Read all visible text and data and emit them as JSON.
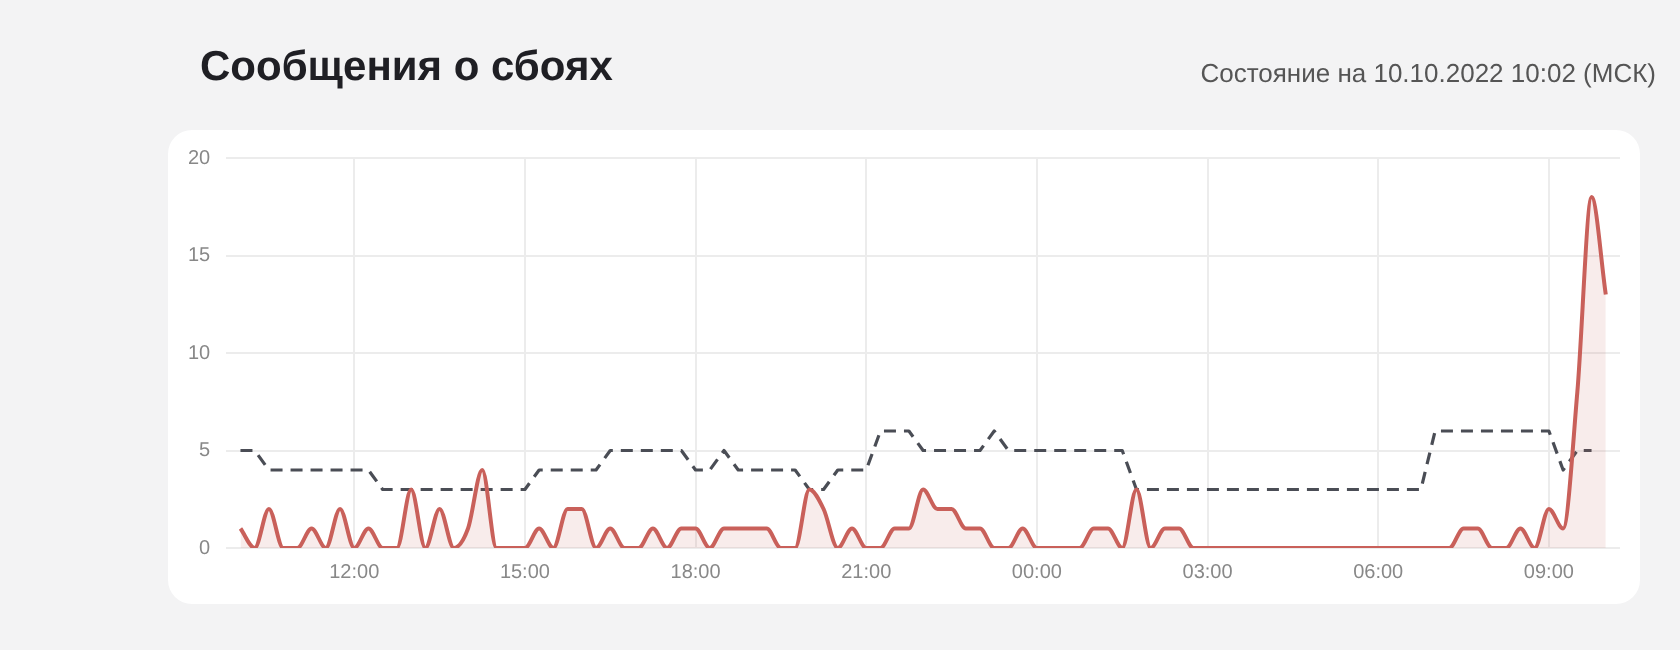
{
  "chart_data": {
    "type": "area",
    "title": "Сообщения о сбоях",
    "subtitle": "Состояние на 10.10.2022 10:02 (МСК)",
    "x": [
      "2022-10-09T10:00",
      "2022-10-09T10:15",
      "2022-10-09T10:30",
      "2022-10-09T10:45",
      "2022-10-09T11:00",
      "2022-10-09T11:15",
      "2022-10-09T11:30",
      "2022-10-09T11:45",
      "2022-10-09T12:00",
      "2022-10-09T12:15",
      "2022-10-09T12:30",
      "2022-10-09T12:45",
      "2022-10-09T13:00",
      "2022-10-09T13:15",
      "2022-10-09T13:30",
      "2022-10-09T13:45",
      "2022-10-09T14:00",
      "2022-10-09T14:15",
      "2022-10-09T14:30",
      "2022-10-09T14:45",
      "2022-10-09T15:00",
      "2022-10-09T15:15",
      "2022-10-09T15:30",
      "2022-10-09T15:45",
      "2022-10-09T16:00",
      "2022-10-09T16:15",
      "2022-10-09T16:30",
      "2022-10-09T16:45",
      "2022-10-09T17:00",
      "2022-10-09T17:15",
      "2022-10-09T17:30",
      "2022-10-09T17:45",
      "2022-10-09T18:00",
      "2022-10-09T18:15",
      "2022-10-09T18:30",
      "2022-10-09T18:45",
      "2022-10-09T19:00",
      "2022-10-09T19:15",
      "2022-10-09T19:30",
      "2022-10-09T19:45",
      "2022-10-09T20:00",
      "2022-10-09T20:15",
      "2022-10-09T20:30",
      "2022-10-09T20:45",
      "2022-10-09T21:00",
      "2022-10-09T21:15",
      "2022-10-09T21:30",
      "2022-10-09T21:45",
      "2022-10-09T22:00",
      "2022-10-09T22:15",
      "2022-10-09T22:30",
      "2022-10-09T22:45",
      "2022-10-09T23:00",
      "2022-10-09T23:15",
      "2022-10-09T23:30",
      "2022-10-09T23:45",
      "2022-10-10T00:00",
      "2022-10-10T00:15",
      "2022-10-10T00:30",
      "2022-10-10T00:45",
      "2022-10-10T01:00",
      "2022-10-10T01:15",
      "2022-10-10T01:30",
      "2022-10-10T01:45",
      "2022-10-10T02:00",
      "2022-10-10T02:15",
      "2022-10-10T02:30",
      "2022-10-10T02:45",
      "2022-10-10T03:00",
      "2022-10-10T03:15",
      "2022-10-10T03:30",
      "2022-10-10T03:45",
      "2022-10-10T04:00",
      "2022-10-10T04:15",
      "2022-10-10T04:30",
      "2022-10-10T04:45",
      "2022-10-10T05:00",
      "2022-10-10T05:15",
      "2022-10-10T05:30",
      "2022-10-10T05:45",
      "2022-10-10T06:00",
      "2022-10-10T06:15",
      "2022-10-10T06:30",
      "2022-10-10T06:45",
      "2022-10-10T07:00",
      "2022-10-10T07:15",
      "2022-10-10T07:30",
      "2022-10-10T07:45",
      "2022-10-10T08:00",
      "2022-10-10T08:15",
      "2022-10-10T08:30",
      "2022-10-10T08:45",
      "2022-10-10T09:00",
      "2022-10-10T09:15",
      "2022-10-10T09:30",
      "2022-10-10T09:45",
      "2022-10-10T10:00"
    ],
    "series": [
      {
        "type": "area",
        "color": "#c9605a",
        "values": [
          1,
          0,
          2,
          0,
          0,
          1,
          0,
          2,
          0,
          1,
          0,
          0,
          3,
          0,
          2,
          0,
          1,
          4,
          0,
          0,
          0,
          1,
          0,
          2,
          2,
          0,
          1,
          0,
          0,
          1,
          0,
          1,
          1,
          0,
          1,
          1,
          1,
          1,
          0,
          0,
          3,
          2,
          0,
          1,
          0,
          0,
          1,
          1,
          3,
          2,
          2,
          1,
          1,
          0,
          0,
          1,
          0,
          0,
          0,
          0,
          1,
          1,
          0,
          3,
          0,
          1,
          1,
          0,
          0,
          0,
          0,
          0,
          0,
          0,
          0,
          0,
          0,
          0,
          0,
          0,
          0,
          0,
          0,
          0,
          0,
          0,
          1,
          1,
          0,
          0,
          1,
          0,
          2,
          1,
          8,
          18,
          13
        ]
      },
      {
        "type": "line",
        "color": "#4a4d55",
        "line_style": "dashed",
        "x": [
          "2022-10-09T10:00",
          "2022-10-09T10:15",
          "2022-10-09T10:30",
          "2022-10-09T12:15",
          "2022-10-09T12:30",
          "2022-10-09T15:00",
          "2022-10-09T15:15",
          "2022-10-09T16:15",
          "2022-10-09T16:30",
          "2022-10-09T17:45",
          "2022-10-09T18:00",
          "2022-10-09T18:15",
          "2022-10-09T18:30",
          "2022-10-09T18:45",
          "2022-10-09T19:45",
          "2022-10-09T20:00",
          "2022-10-09T20:15",
          "2022-10-09T20:30",
          "2022-10-09T21:00",
          "2022-10-09T21:15",
          "2022-10-09T21:45",
          "2022-10-09T22:00",
          "2022-10-09T23:00",
          "2022-10-09T23:15",
          "2022-10-09T23:30",
          "2022-10-10T01:30",
          "2022-10-10T01:45",
          "2022-10-10T06:45",
          "2022-10-10T07:00",
          "2022-10-10T09:00",
          "2022-10-10T09:15",
          "2022-10-10T09:30",
          "2022-10-10T09:45"
        ],
        "values": [
          5,
          5,
          4,
          4,
          3,
          3,
          4,
          4,
          5,
          5,
          4,
          4,
          5,
          4,
          4,
          3,
          3,
          4,
          4,
          6,
          6,
          5,
          5,
          6,
          5,
          5,
          3,
          3,
          6,
          6,
          4,
          5,
          5
        ]
      }
    ],
    "xlim": [
      "2022-10-09T09:45",
      "2022-10-10T10:15"
    ],
    "xticks": [
      {
        "value": "2022-10-09T12:00",
        "label": "12:00"
      },
      {
        "value": "2022-10-09T15:00",
        "label": "15:00"
      },
      {
        "value": "2022-10-09T18:00",
        "label": "18:00"
      },
      {
        "value": "2022-10-09T21:00",
        "label": "21:00"
      },
      {
        "value": "2022-10-10T00:00",
        "label": "00:00"
      },
      {
        "value": "2022-10-10T03:00",
        "label": "03:00"
      },
      {
        "value": "2022-10-10T06:00",
        "label": "06:00"
      },
      {
        "value": "2022-10-10T09:00",
        "label": "09:00"
      }
    ],
    "ylim": [
      0,
      20
    ],
    "yticks": [
      0,
      5,
      10,
      15,
      20
    ],
    "grid": true,
    "legend": false,
    "marker": "none"
  }
}
